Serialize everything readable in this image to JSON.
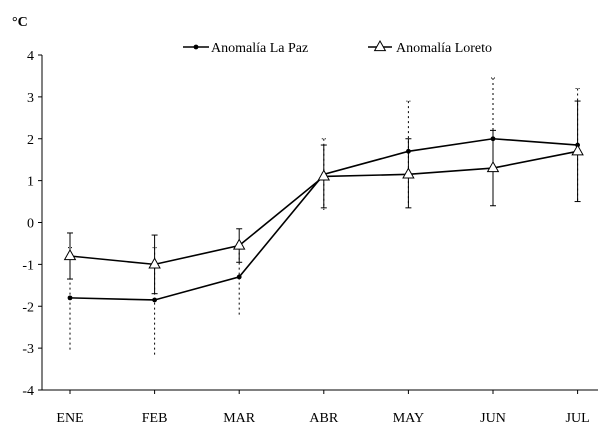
{
  "chart_data": {
    "type": "line",
    "ylabel": "°C",
    "ylim": [
      -4,
      4
    ],
    "yticks": [
      "4",
      "3",
      "2",
      "1",
      "0",
      "-1",
      "-2",
      "-3",
      "-4"
    ],
    "categories": [
      "ENE",
      "FEB",
      "MAR",
      "ABR",
      "MAY",
      "JUN",
      "JUL"
    ],
    "legend_position": "top",
    "grid": false,
    "series": [
      {
        "name": "Anomalía La Paz",
        "marker": "dot",
        "values": [
          -1.8,
          -1.85,
          -1.3,
          1.15,
          1.7,
          2.0,
          1.85
        ],
        "error_upper": [
          -0.6,
          -0.6,
          -0.6,
          2.0,
          2.9,
          3.45,
          3.2
        ],
        "error_lower": [
          -3.1,
          -3.2,
          -2.2,
          0.3,
          0.4,
          0.4,
          0.5
        ],
        "error_style": "dotted"
      },
      {
        "name": "Anomalía Loreto",
        "marker": "triangle",
        "values": [
          -0.8,
          -1.0,
          -0.55,
          1.1,
          1.15,
          1.3,
          1.7
        ],
        "error_upper": [
          -0.25,
          -0.3,
          -0.15,
          1.85,
          2.0,
          2.2,
          2.9
        ],
        "error_lower": [
          -1.35,
          -1.7,
          -0.95,
          0.35,
          0.35,
          0.4,
          0.5
        ],
        "error_style": "solid"
      }
    ]
  }
}
